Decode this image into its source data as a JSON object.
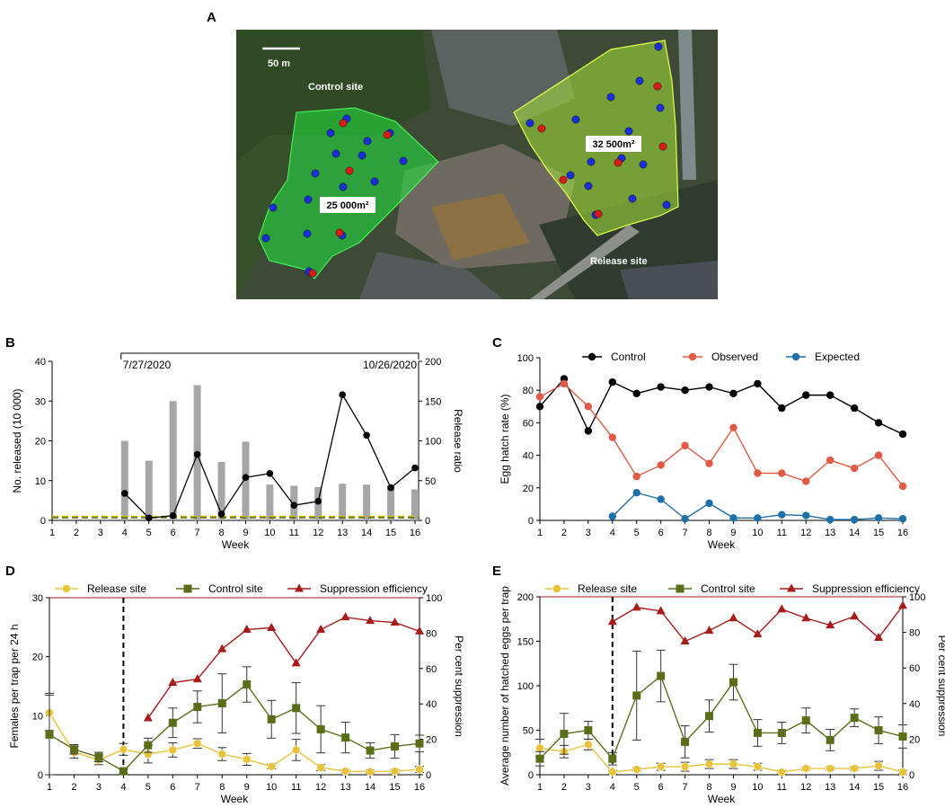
{
  "panel_letters": {
    "a": "A",
    "b": "B",
    "c": "C",
    "d": "D",
    "e": "E"
  },
  "map": {
    "scale_label": "50 m",
    "control_label": "Control site",
    "release_label": "Release site",
    "control_area": "25 000m²",
    "release_area": "32 500m²",
    "colors": {
      "trap_blue": "#1a2fd6",
      "trap_red": "#d81c1c",
      "control_zone": "#27d83e",
      "release_zone": "#a8e63a"
    }
  },
  "chart_data": [
    {
      "id": "B",
      "type": "bar",
      "x": [
        1,
        2,
        3,
        4,
        5,
        6,
        7,
        8,
        9,
        10,
        11,
        12,
        13,
        14,
        15,
        16
      ],
      "xlabel": "Week",
      "ylabel": "No. released (10 000)",
      "y2label": "Release ratio",
      "ylim": [
        0,
        40
      ],
      "y2lim": [
        0,
        200
      ],
      "yticks": [
        0,
        10,
        20,
        30,
        40
      ],
      "y2ticks": [
        0,
        50,
        100,
        150,
        200
      ],
      "date_start": "7/27/2020",
      "date_end": "10/26/2020",
      "series": [
        {
          "kind": "bar",
          "axis": "left",
          "color": "#a6a6a6",
          "x": [
            4,
            5,
            6,
            7,
            8,
            9,
            10,
            11,
            12,
            13,
            14,
            15,
            16
          ],
          "values": [
            20,
            15,
            30,
            34,
            14.7,
            19.8,
            9,
            8.7,
            8.4,
            9.2,
            9,
            8.8,
            7.8
          ]
        },
        {
          "kind": "line",
          "axis": "right",
          "color": "#000000",
          "x": [
            4,
            5,
            6,
            7,
            8,
            9,
            10,
            11,
            12,
            13,
            14,
            15,
            16
          ],
          "values": [
            34,
            3,
            6,
            83,
            8,
            54,
            59,
            19,
            24,
            158,
            107,
            41,
            66
          ]
        }
      ],
      "reference_lines": [
        {
          "axis": "left",
          "value": 1,
          "color": "#d6b800"
        },
        {
          "axis": "left",
          "value": 0.7,
          "color": "#5a6e00"
        }
      ]
    },
    {
      "id": "C",
      "type": "line",
      "x": [
        1,
        2,
        3,
        4,
        5,
        6,
        7,
        8,
        9,
        10,
        11,
        12,
        13,
        14,
        15,
        16
      ],
      "xlabel": "Week",
      "ylabel": "Egg hatch rate (%)",
      "ylim": [
        0,
        100
      ],
      "yticks": [
        0,
        20,
        40,
        60,
        80,
        100
      ],
      "series": [
        {
          "name": "Control",
          "color": "#000000",
          "x": [
            1,
            2,
            3,
            4,
            5,
            6,
            7,
            8,
            9,
            10,
            11,
            12,
            13,
            14,
            15,
            16
          ],
          "values": [
            70,
            87,
            55,
            85,
            78,
            82,
            80,
            82,
            78,
            84,
            69,
            77,
            77,
            69,
            60,
            53
          ]
        },
        {
          "name": "Observed",
          "color": "#e05a45",
          "x": [
            1,
            2,
            3,
            4,
            5,
            6,
            7,
            8,
            9,
            10,
            11,
            12,
            13,
            14,
            15,
            16
          ],
          "values": [
            76,
            84,
            70,
            51,
            27,
            34,
            46,
            35,
            57,
            29,
            29,
            24,
            37,
            32,
            40,
            21
          ]
        },
        {
          "name": "Expected",
          "color": "#1f6fa8",
          "x": [
            4,
            5,
            6,
            7,
            8,
            9,
            10,
            11,
            12,
            13,
            14,
            15,
            16
          ],
          "values": [
            2.5,
            17,
            13,
            1,
            10.5,
            1.5,
            1.5,
            3.5,
            3,
            0.5,
            0.5,
            1.5,
            1
          ]
        }
      ]
    },
    {
      "id": "D",
      "type": "line",
      "x": [
        1,
        2,
        3,
        4,
        5,
        6,
        7,
        8,
        9,
        10,
        11,
        12,
        13,
        14,
        15,
        16
      ],
      "xlabel": "Week",
      "ylabel": "Females per trap per 24 h",
      "y2label": "Per cent suppression",
      "ylim": [
        0,
        30
      ],
      "y2lim": [
        0,
        100
      ],
      "yticks": [
        0,
        10,
        20,
        30
      ],
      "y2ticks": [
        0,
        20,
        40,
        60,
        80,
        100
      ],
      "release_week": 4,
      "series": [
        {
          "name": "Release site",
          "color": "#e8c33a",
          "marker": "circle",
          "axis": "left",
          "x": [
            1,
            2,
            3,
            4,
            5,
            6,
            7,
            8,
            9,
            10,
            11,
            12,
            13,
            14,
            15,
            16
          ],
          "values": [
            10.5,
            3.8,
            2.5,
            4.3,
            3.5,
            4.2,
            5.3,
            3.5,
            2.6,
            1.4,
            4.2,
            1.2,
            0.6,
            0.5,
            0.6,
            0.9
          ],
          "errors": [
            3,
            1,
            0.8,
            1,
            1.5,
            1.2,
            0.8,
            1.1,
            1,
            0.4,
            1.8,
            0.5,
            0.3,
            0.3,
            0.3,
            0.5
          ]
        },
        {
          "name": "Control site",
          "color": "#5a6e1a",
          "marker": "square",
          "axis": "left",
          "x": [
            1,
            2,
            3,
            4,
            5,
            6,
            7,
            8,
            9,
            10,
            11,
            12,
            13,
            14,
            15,
            16
          ],
          "values": [
            6.8,
            4.3,
            3,
            0.6,
            5,
            8.8,
            11.5,
            12.1,
            15.3,
            9.4,
            11.3,
            7.7,
            6.3,
            4.1,
            4.8,
            5.3
          ],
          "errors": [
            7,
            0.8,
            0.8,
            0.4,
            1.2,
            2.5,
            2.7,
            5,
            3,
            3.2,
            4.3,
            4,
            2.6,
            1.3,
            2,
            1.4
          ]
        },
        {
          "name": "Suppression efficiency",
          "color": "#a81b1b",
          "marker": "triangle",
          "axis": "right",
          "x": [
            5,
            6,
            7,
            8,
            9,
            10,
            11,
            12,
            13,
            14,
            15,
            16
          ],
          "values": [
            32,
            52,
            54,
            71,
            82,
            83,
            63,
            82,
            89,
            87,
            86,
            81
          ]
        }
      ]
    },
    {
      "id": "E",
      "type": "line",
      "x": [
        1,
        2,
        3,
        4,
        5,
        6,
        7,
        8,
        9,
        10,
        11,
        12,
        13,
        14,
        15,
        16
      ],
      "xlabel": "Week",
      "ylabel": "Average number of hatched eggs per trap",
      "y2label": "Per cent suppression",
      "ylim": [
        0,
        200
      ],
      "y2lim": [
        0,
        100
      ],
      "yticks": [
        0,
        50,
        100,
        150,
        200
      ],
      "y2ticks": [
        0,
        20,
        40,
        60,
        80,
        100
      ],
      "release_week": 4,
      "series": [
        {
          "name": "Release site",
          "color": "#e8c33a",
          "marker": "circle",
          "axis": "left",
          "x": [
            1,
            2,
            3,
            4,
            5,
            6,
            7,
            8,
            9,
            10,
            11,
            12,
            13,
            14,
            15,
            16
          ],
          "values": [
            30,
            26,
            34,
            3,
            6,
            9,
            9,
            12,
            12,
            9,
            3,
            7,
            7,
            7,
            10,
            3
          ],
          "errors": [
            10,
            7,
            6,
            2,
            2,
            4,
            5,
            5,
            5,
            4,
            2,
            2,
            2,
            2,
            5,
            2
          ]
        },
        {
          "name": "Control site",
          "color": "#5a6e1a",
          "marker": "square",
          "axis": "left",
          "x": [
            1,
            2,
            3,
            4,
            5,
            6,
            7,
            8,
            9,
            10,
            11,
            12,
            13,
            14,
            15,
            16
          ],
          "values": [
            18,
            46,
            50,
            18,
            89,
            111,
            37,
            66,
            104,
            47,
            47,
            61,
            39,
            64,
            50,
            43
          ],
          "errors": [
            8,
            23,
            10,
            7,
            50,
            29,
            18,
            18,
            20,
            15,
            12,
            14,
            12,
            10,
            15,
            13
          ]
        },
        {
          "name": "Suppression efficiency",
          "color": "#a81b1b",
          "marker": "triangle",
          "axis": "right",
          "x": [
            4,
            5,
            6,
            7,
            8,
            9,
            10,
            11,
            12,
            13,
            14,
            15,
            16
          ],
          "values": [
            86,
            94,
            92,
            75,
            81,
            88,
            79,
            93,
            88,
            84,
            89,
            77,
            95
          ]
        }
      ]
    }
  ]
}
